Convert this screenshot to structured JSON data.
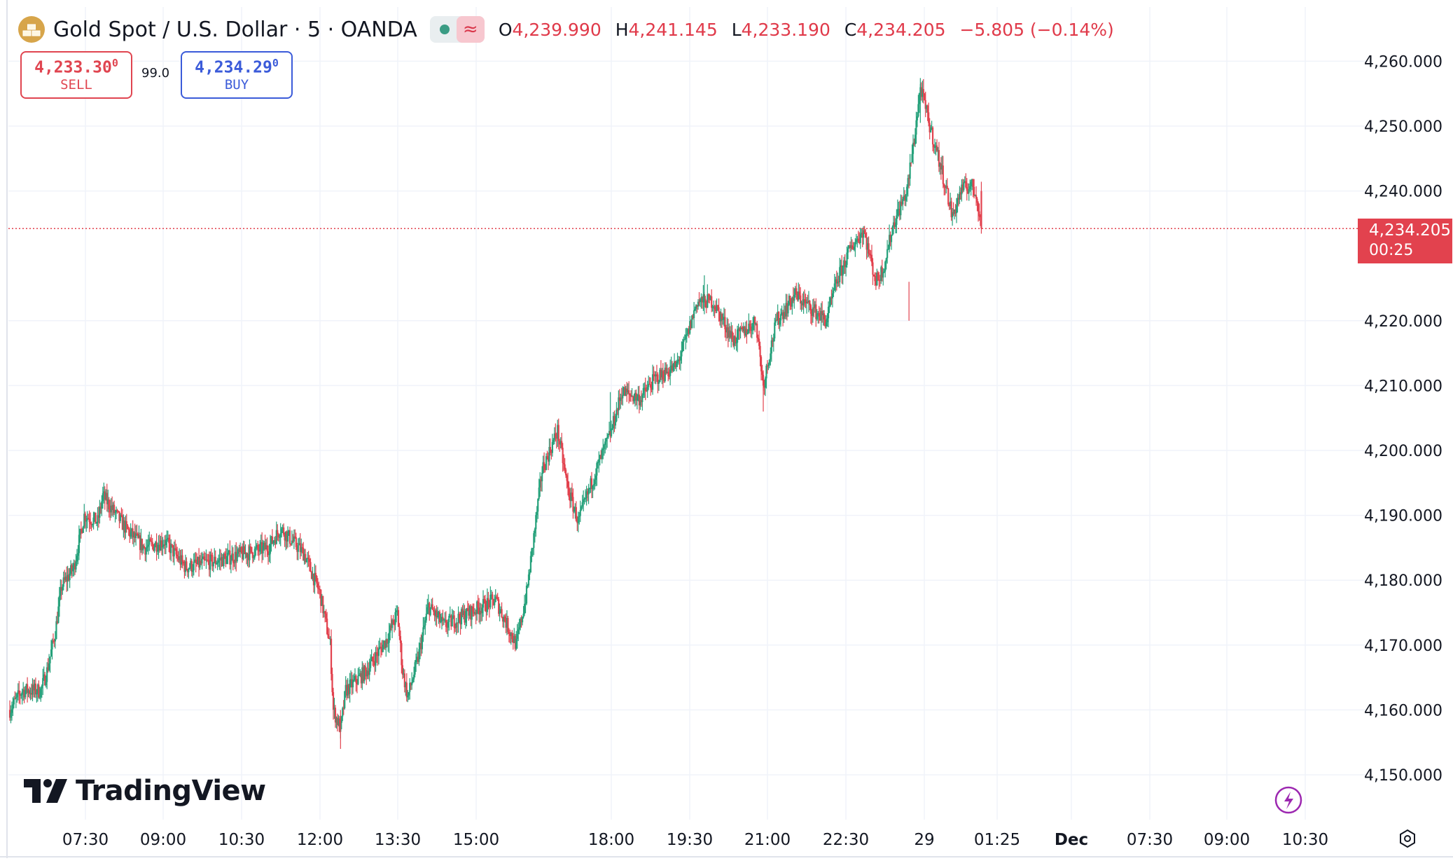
{
  "header": {
    "symbol_title": "Gold Spot / U.S. Dollar · 5 · OANDA",
    "wave_icon": "≈",
    "ohlc": {
      "o_label": "O",
      "o_value": "4,239.990",
      "h_label": "H",
      "h_value": "4,241.145",
      "l_label": "L",
      "l_value": "4,233.190",
      "c_label": "C",
      "c_value": "4,234.205",
      "change": "−5.805 (−0.14%)"
    }
  },
  "trade": {
    "sell_price": "4,233.30",
    "sell_sup": "0",
    "sell_label": "SELL",
    "spread": "99.0",
    "buy_price": "4,234.29",
    "buy_sup": "0",
    "buy_label": "BUY"
  },
  "last_price": {
    "value": "4,234.205",
    "countdown": "00:25"
  },
  "branding": {
    "name": "TradingView"
  },
  "colors": {
    "up": "#26a17b",
    "down": "#e2424e",
    "grid": "#f0f3fa",
    "text": "#131722"
  },
  "chart_data": {
    "type": "candlestick",
    "timeframe": "5",
    "ylim": [
      4144,
      4264
    ],
    "y_ticks": [
      4260,
      4250,
      4240,
      4220,
      4210,
      4200,
      4190,
      4180,
      4170,
      4160,
      4150
    ],
    "y_tick_labels": [
      "4,260.000",
      "4,250.000",
      "4,240.000",
      "4,220.000",
      "4,210.000",
      "4,200.000",
      "4,190.000",
      "4,180.000",
      "4,170.000",
      "4,160.000",
      "4,150.000"
    ],
    "x_tick_labels": [
      "07:30",
      "09:00",
      "10:30",
      "12:00",
      "13:30",
      "15:00",
      "18:00",
      "19:30",
      "21:00",
      "22:30",
      "29",
      "01:25",
      "Dec",
      "07:30",
      "09:00",
      "10:30"
    ],
    "x_tick_bold": [
      false,
      false,
      false,
      false,
      false,
      false,
      false,
      false,
      false,
      false,
      false,
      false,
      true,
      false,
      false,
      false
    ],
    "last_price": 4234.205,
    "anchors": [
      [
        0,
        4160
      ],
      [
        12,
        4163
      ],
      [
        30,
        4163
      ],
      [
        36,
        4166
      ],
      [
        44,
        4172
      ],
      [
        50,
        4179
      ],
      [
        62,
        4182
      ],
      [
        72,
        4190
      ],
      [
        85,
        4189
      ],
      [
        90,
        4193
      ],
      [
        112,
        4188
      ],
      [
        130,
        4185
      ],
      [
        150,
        4186
      ],
      [
        170,
        4182
      ],
      [
        200,
        4183
      ],
      [
        225,
        4184
      ],
      [
        250,
        4185
      ],
      [
        262,
        4188
      ],
      [
        285,
        4184
      ],
      [
        300,
        4178
      ],
      [
        310,
        4170
      ],
      [
        313,
        4160
      ],
      [
        320,
        4157
      ],
      [
        325,
        4163
      ],
      [
        345,
        4166
      ],
      [
        365,
        4171
      ],
      [
        375,
        4175
      ],
      [
        380,
        4166
      ],
      [
        385,
        4162
      ],
      [
        395,
        4168
      ],
      [
        405,
        4176
      ],
      [
        420,
        4173
      ],
      [
        445,
        4175
      ],
      [
        470,
        4177
      ],
      [
        490,
        4170
      ],
      [
        500,
        4178
      ],
      [
        508,
        4188
      ],
      [
        515,
        4197
      ],
      [
        530,
        4203
      ],
      [
        540,
        4194
      ],
      [
        550,
        4189
      ],
      [
        565,
        4196
      ],
      [
        582,
        4203
      ],
      [
        592,
        4209
      ],
      [
        610,
        4208
      ],
      [
        624,
        4211
      ],
      [
        645,
        4213
      ],
      [
        656,
        4218
      ],
      [
        665,
        4223
      ],
      [
        680,
        4223
      ],
      [
        700,
        4217
      ],
      [
        715,
        4219
      ],
      [
        722,
        4220
      ],
      [
        729,
        4210
      ],
      [
        735,
        4215
      ],
      [
        742,
        4220
      ],
      [
        760,
        4224
      ],
      [
        775,
        4222
      ],
      [
        790,
        4220
      ],
      [
        800,
        4226
      ],
      [
        813,
        4231
      ],
      [
        826,
        4234
      ],
      [
        832,
        4230
      ],
      [
        838,
        4226
      ],
      [
        845,
        4228
      ],
      [
        855,
        4235
      ],
      [
        868,
        4240
      ],
      [
        875,
        4248
      ],
      [
        881,
        4256
      ],
      [
        890,
        4250
      ],
      [
        897,
        4246
      ],
      [
        905,
        4241
      ],
      [
        912,
        4236
      ],
      [
        920,
        4240
      ],
      [
        930,
        4241
      ],
      [
        936,
        4239
      ],
      [
        940,
        4234.2
      ]
    ],
    "notable_highs": [
      [
        881,
        4256.5
      ],
      [
        672,
        4227
      ],
      [
        581,
        4209
      ]
    ],
    "notable_lows": [
      [
        320,
        4154
      ],
      [
        729,
        4206
      ],
      [
        870,
        4220
      ]
    ]
  }
}
